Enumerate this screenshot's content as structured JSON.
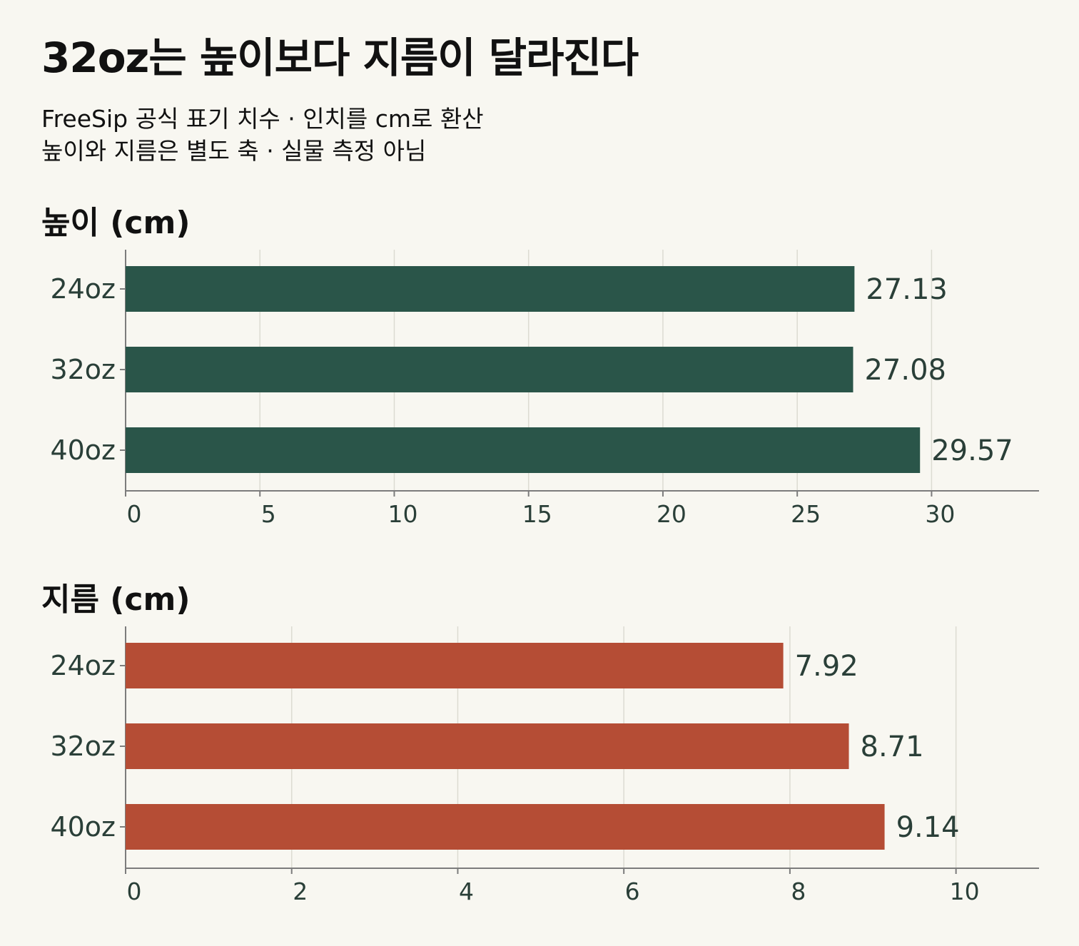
{
  "header": {
    "title": "32oz는 높이보다 지름이 달라진다",
    "subtitle_lines": [
      "FreeSip 공식 표기 치수 · 인치를 cm로 환산",
      "높이와 지름은 별도 축 · 실물 측정 아님"
    ]
  },
  "chart_data": [
    {
      "type": "bar",
      "orientation": "horizontal",
      "title": "높이 (cm)",
      "categories": [
        "24oz",
        "32oz",
        "40oz"
      ],
      "values": [
        27.13,
        27.08,
        29.57
      ],
      "value_labels": [
        "27.13",
        "27.08",
        "29.57"
      ],
      "xlim": [
        0,
        34
      ],
      "ticks": [
        0,
        5,
        10,
        15,
        20,
        25,
        30
      ],
      "tick_labels": [
        "0",
        "5",
        "10",
        "15",
        "20",
        "25",
        "30"
      ],
      "grid": true,
      "color": "#2a5549"
    },
    {
      "type": "bar",
      "orientation": "horizontal",
      "title": "지름 (cm)",
      "categories": [
        "24oz",
        "32oz",
        "40oz"
      ],
      "values": [
        7.92,
        8.71,
        9.14
      ],
      "value_labels": [
        "7.92",
        "8.71",
        "9.14"
      ],
      "xlim": [
        0,
        11
      ],
      "ticks": [
        0,
        2,
        4,
        6,
        8,
        10
      ],
      "tick_labels": [
        "0",
        "2",
        "4",
        "6",
        "8",
        "10"
      ],
      "grid": true,
      "color": "#b54d35"
    }
  ]
}
